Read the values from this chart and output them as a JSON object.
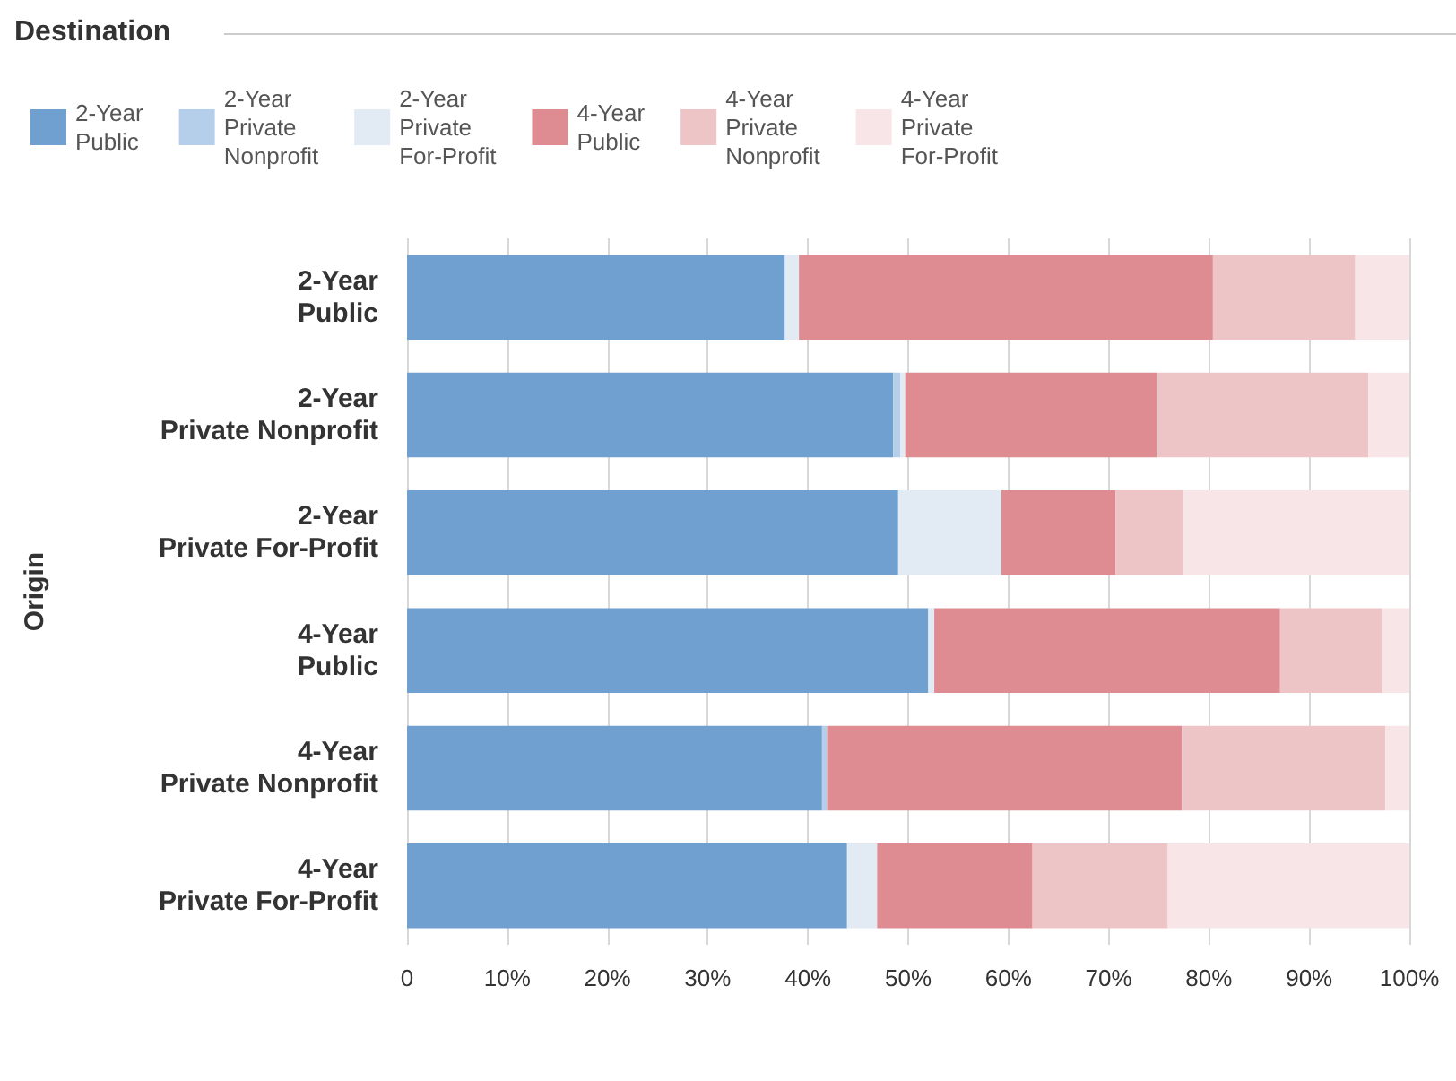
{
  "chart_data": {
    "type": "bar",
    "orientation": "horizontal",
    "stacked": true,
    "legend_title": "Destination",
    "ylabel": "Origin",
    "categories": [
      "2-Year Public",
      "2-Year Private Nonprofit",
      "2-Year Private For-Profit",
      "4-Year Public",
      "4-Year Private Nonprofit",
      "4-Year Private For-Profit"
    ],
    "series": [
      {
        "name": "2-Year Public",
        "color": "#6fa0d0",
        "values": [
          37.7,
          48.5,
          49.0,
          52.0,
          41.4,
          43.9
        ]
      },
      {
        "name": "2-Year Private Nonprofit",
        "color": "#b5cfea",
        "values": [
          0,
          0.7,
          0,
          null,
          0.5,
          0
        ]
      },
      {
        "name": "2-Year Private For-Profit",
        "color": "#e2eaf4",
        "values": [
          1.4,
          0.5,
          10.3,
          0.6,
          0,
          3.0
        ]
      },
      {
        "name": "4-Year Public",
        "color": "#de8b91",
        "values": [
          41.3,
          25.1,
          11.4,
          34.5,
          35.4,
          15.5
        ]
      },
      {
        "name": "4-Year Private Nonprofit",
        "color": "#eec5c7",
        "values": [
          14.2,
          21.1,
          6.8,
          10.2,
          20.3,
          13.5
        ]
      },
      {
        "name": "4-Year Private For-Profit",
        "color": "#f7e5e7",
        "values": [
          5.4,
          4.1,
          22.5,
          2.7,
          2.4,
          24.1
        ]
      }
    ],
    "xlim": [
      0,
      100
    ],
    "xticks": [
      0,
      {
        "value": 10,
        "label": "10%"
      },
      {
        "value": 20,
        "label": "20%"
      },
      {
        "value": 30,
        "label": "30%"
      },
      {
        "value": 40,
        "label": "40%"
      },
      {
        "value": 50,
        "label": "50%"
      },
      {
        "value": 60,
        "label": "60%"
      },
      {
        "value": 70,
        "label": "70%"
      },
      {
        "value": 80,
        "label": "80%"
      },
      {
        "value": 90,
        "label": "90%"
      },
      {
        "value": 100,
        "label": "100%"
      }
    ],
    "grid": "x",
    "legend": "top left"
  }
}
